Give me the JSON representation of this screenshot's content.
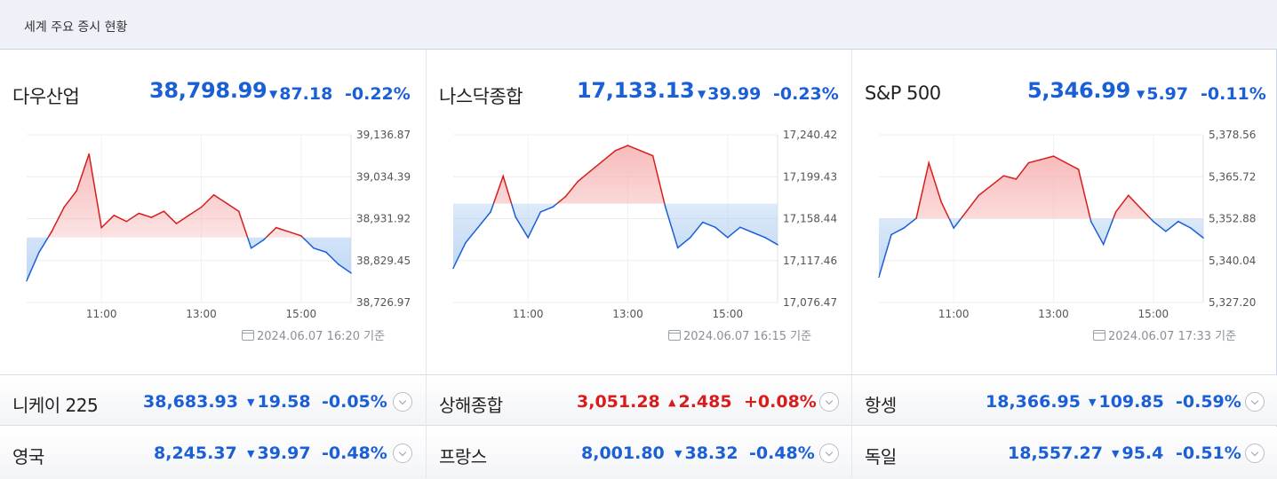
{
  "header": {
    "title": "세계 주요 증시 현황"
  },
  "colors": {
    "up": "#d91c1c",
    "down": "#1a5fd6",
    "up_fill": "#f7b4b4",
    "down_fill": "#b8d3f4"
  },
  "main_indices": [
    {
      "name": "다우산업",
      "value": "38,798.99",
      "change": "87.18",
      "change_pct": "-0.22%",
      "direction": "down",
      "timestamp": "2024.06.07 16:20 기준",
      "y_ticks": [
        "39,136.87",
        "39,034.39",
        "38,931.92",
        "38,829.45",
        "38,726.97"
      ],
      "x_ticks": [
        "11:00",
        "13:00",
        "15:00"
      ]
    },
    {
      "name": "나스닥종합",
      "value": "17,133.13",
      "change": "39.99",
      "change_pct": "-0.23%",
      "direction": "down",
      "timestamp": "2024.06.07 16:15 기준",
      "y_ticks": [
        "17,240.42",
        "17,199.43",
        "17,158.44",
        "17,117.46",
        "17,076.47"
      ],
      "x_ticks": [
        "11:00",
        "13:00",
        "15:00"
      ]
    },
    {
      "name": "S&P 500",
      "value": "5,346.99",
      "change": "5.97",
      "change_pct": "-0.11%",
      "direction": "down",
      "timestamp": "2024.06.07 17:33 기준",
      "y_ticks": [
        "5,378.56",
        "5,365.72",
        "5,352.88",
        "5,340.04",
        "5,327.20"
      ],
      "x_ticks": [
        "11:00",
        "13:00",
        "15:00"
      ]
    }
  ],
  "chart_data": [
    {
      "type": "line",
      "title": "다우산업",
      "baseline": 38886.17,
      "ylim": [
        38726.97,
        39136.87
      ],
      "grid": true,
      "x": [
        "09:30",
        "09:45",
        "10:00",
        "10:15",
        "10:30",
        "10:45",
        "11:00",
        "11:15",
        "11:30",
        "11:45",
        "12:00",
        "12:15",
        "12:30",
        "12:45",
        "13:00",
        "13:15",
        "13:30",
        "13:45",
        "14:00",
        "14:15",
        "14:30",
        "14:45",
        "15:00",
        "15:15",
        "15:30",
        "15:45",
        "16:00"
      ],
      "values": [
        38780,
        38850,
        38900,
        38960,
        39000,
        39090,
        38910,
        38940,
        38925,
        38945,
        38935,
        38950,
        38920,
        38940,
        38960,
        38990,
        38970,
        38950,
        38860,
        38880,
        38910,
        38900,
        38890,
        38860,
        38850,
        38820,
        38799
      ]
    },
    {
      "type": "line",
      "title": "나스닥종합",
      "baseline": 17173.12,
      "ylim": [
        17076.47,
        17240.42
      ],
      "grid": true,
      "x": [
        "09:30",
        "09:45",
        "10:00",
        "10:15",
        "10:30",
        "10:45",
        "11:00",
        "11:15",
        "11:30",
        "11:45",
        "12:00",
        "12:15",
        "12:30",
        "12:45",
        "13:00",
        "13:15",
        "13:30",
        "13:45",
        "14:00",
        "14:15",
        "14:30",
        "14:45",
        "15:00",
        "15:15",
        "15:30",
        "15:45",
        "16:00"
      ],
      "values": [
        17110,
        17135,
        17150,
        17165,
        17200,
        17160,
        17140,
        17165,
        17170,
        17180,
        17195,
        17205,
        17215,
        17225,
        17230,
        17225,
        17220,
        17170,
        17130,
        17140,
        17155,
        17150,
        17140,
        17150,
        17145,
        17140,
        17133
      ]
    },
    {
      "type": "line",
      "title": "S&P 500",
      "baseline": 5352.96,
      "ylim": [
        5327.2,
        5378.56
      ],
      "grid": true,
      "x": [
        "09:30",
        "09:45",
        "10:00",
        "10:15",
        "10:30",
        "10:45",
        "11:00",
        "11:15",
        "11:30",
        "11:45",
        "12:00",
        "12:15",
        "12:30",
        "12:45",
        "13:00",
        "13:15",
        "13:30",
        "13:45",
        "14:00",
        "14:15",
        "14:30",
        "14:45",
        "15:00",
        "15:15",
        "15:30",
        "15:45",
        "16:00"
      ],
      "values": [
        5335,
        5348,
        5350,
        5353,
        5370,
        5358,
        5350,
        5355,
        5360,
        5363,
        5366,
        5365,
        5370,
        5371,
        5372,
        5370,
        5368,
        5352,
        5345,
        5355,
        5360,
        5356,
        5352,
        5349,
        5352,
        5350,
        5347
      ]
    }
  ],
  "sub_indices": [
    [
      {
        "name": "니케이 225",
        "value": "38,683.93",
        "change": "19.58",
        "change_pct": "-0.05%",
        "direction": "down"
      },
      {
        "name": "상해종합",
        "value": "3,051.28",
        "change": "2.485",
        "change_pct": "+0.08%",
        "direction": "up"
      },
      {
        "name": "항셍",
        "value": "18,366.95",
        "change": "109.85",
        "change_pct": "-0.59%",
        "direction": "down"
      }
    ],
    [
      {
        "name": "영국",
        "value": "8,245.37",
        "change": "39.97",
        "change_pct": "-0.48%",
        "direction": "down"
      },
      {
        "name": "프랑스",
        "value": "8,001.80",
        "change": "38.32",
        "change_pct": "-0.48%",
        "direction": "down"
      },
      {
        "name": "독일",
        "value": "18,557.27",
        "change": "95.4",
        "change_pct": "-0.51%",
        "direction": "down"
      }
    ]
  ]
}
